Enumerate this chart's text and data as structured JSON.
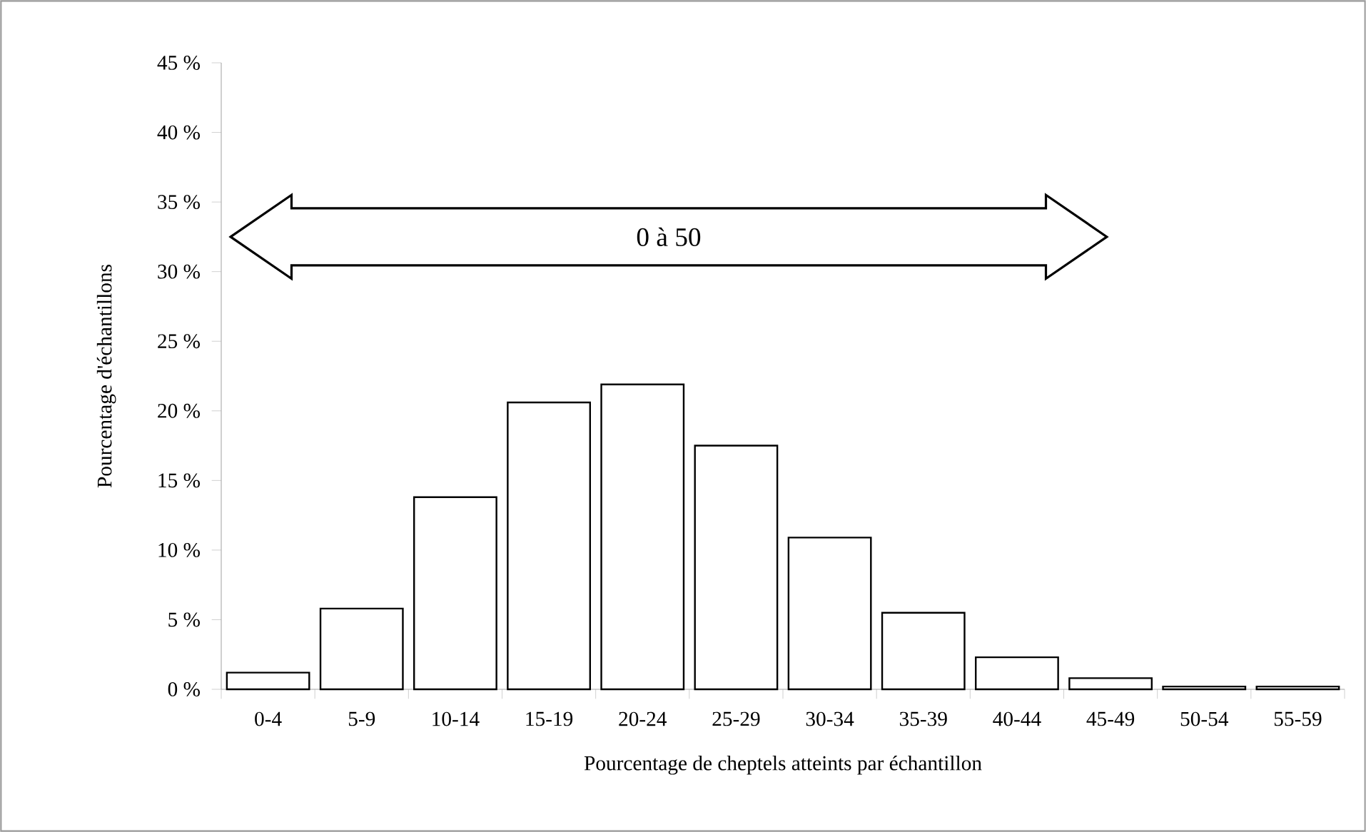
{
  "chart_data": {
    "type": "bar",
    "xlabel": "Pourcentage de cheptels atteints par échantillon",
    "ylabel": "Pourcentage d'échantillons",
    "categories": [
      "0-4",
      "5-9",
      "10-14",
      "15-19",
      "20-24",
      "25-29",
      "30-34",
      "35-39",
      "40-44",
      "45-49",
      "50-54",
      "55-59"
    ],
    "values": [
      1.2,
      5.8,
      13.8,
      20.6,
      21.9,
      17.5,
      10.9,
      5.5,
      2.3,
      0.8,
      0.2,
      0.2
    ],
    "color": "#ffffff",
    "ylim": [
      0,
      45
    ],
    "yticks": [
      {
        "value": 0,
        "label": "0 %"
      },
      {
        "value": 5,
        "label": "5 %"
      },
      {
        "value": 10,
        "label": "10 %"
      },
      {
        "value": 15,
        "label": "15 %"
      },
      {
        "value": 20,
        "label": "20 %"
      },
      {
        "value": 25,
        "label": "25 %"
      },
      {
        "value": 30,
        "label": "30 %"
      },
      {
        "value": 35,
        "label": "35 %"
      },
      {
        "value": 40,
        "label": "40 %"
      },
      {
        "value": 45,
        "label": "45 %"
      }
    ],
    "annotations": [
      "0 à 50"
    ],
    "grid": false
  }
}
